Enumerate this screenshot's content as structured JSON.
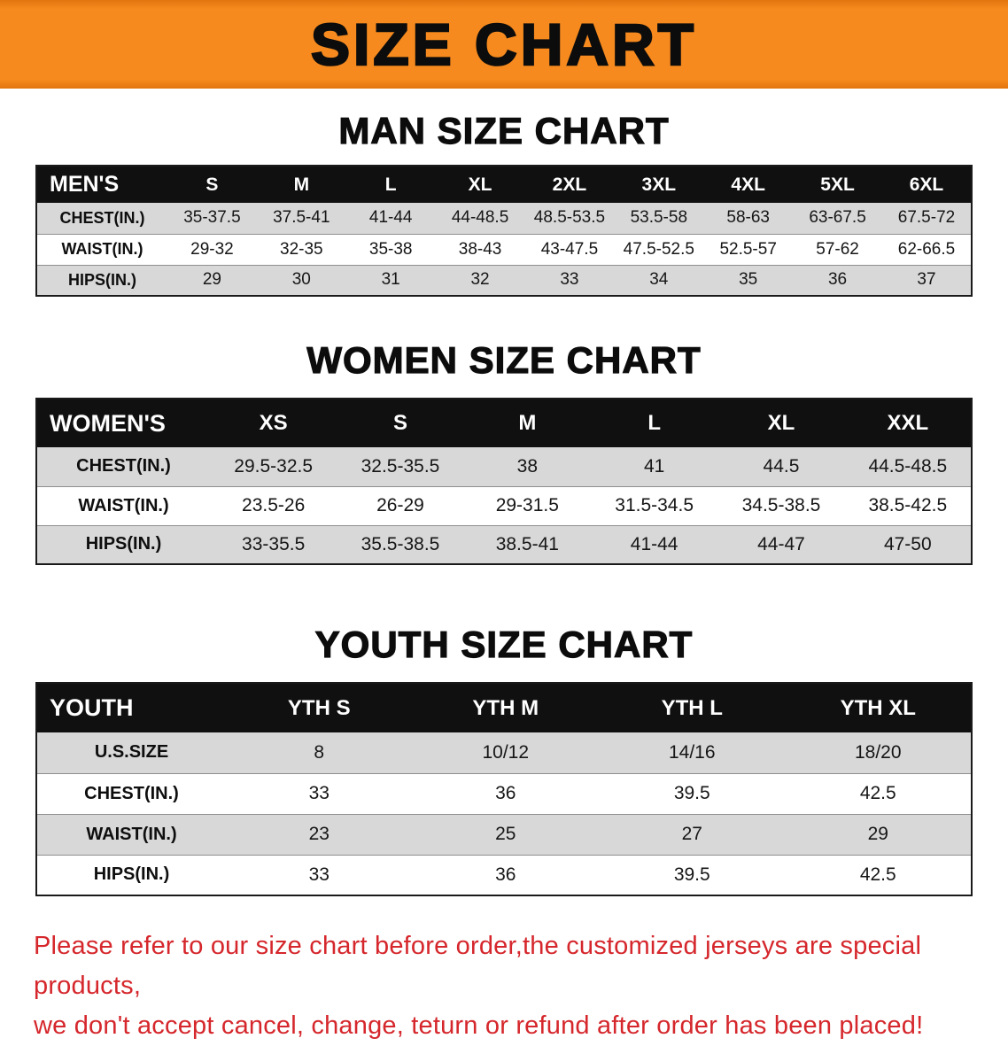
{
  "banner": {
    "title": "SIZE CHART"
  },
  "colors": {
    "banner_bg": "#f68a1e",
    "table_header_bg": "#101010",
    "row_stripe": "#d8d8d8",
    "disclaimer_red": "#d5272c"
  },
  "sections": [
    {
      "id": "men",
      "heading": "MAN SIZE CHART",
      "columns": [
        "MEN'S",
        "S",
        "M",
        "L",
        "XL",
        "2XL",
        "3XL",
        "4XL",
        "5XL",
        "6XL"
      ],
      "rows": [
        {
          "label": "CHEST(IN.)",
          "values": [
            "35-37.5",
            "37.5-41",
            "41-44",
            "44-48.5",
            "48.5-53.5",
            "53.5-58",
            "58-63",
            "63-67.5",
            "67.5-72"
          ]
        },
        {
          "label": "WAIST(IN.)",
          "values": [
            "29-32",
            "32-35",
            "35-38",
            "38-43",
            "43-47.5",
            "47.5-52.5",
            "52.5-57",
            "57-62",
            "62-66.5"
          ]
        },
        {
          "label": "HIPS(IN.)",
          "values": [
            "29",
            "30",
            "31",
            "32",
            "33",
            "34",
            "35",
            "36",
            "37"
          ]
        }
      ]
    },
    {
      "id": "women",
      "heading": "WOMEN SIZE CHART",
      "columns": [
        "WOMEN'S",
        "XS",
        "S",
        "M",
        "L",
        "XL",
        "XXL"
      ],
      "rows": [
        {
          "label": "CHEST(IN.)",
          "values": [
            "29.5-32.5",
            "32.5-35.5",
            "38",
            "41",
            "44.5",
            "44.5-48.5"
          ]
        },
        {
          "label": "WAIST(IN.)",
          "values": [
            "23.5-26",
            "26-29",
            "29-31.5",
            "31.5-34.5",
            "34.5-38.5",
            "38.5-42.5"
          ]
        },
        {
          "label": "HIPS(IN.)",
          "values": [
            "33-35.5",
            "35.5-38.5",
            "38.5-41",
            "41-44",
            "44-47",
            "47-50"
          ]
        }
      ]
    },
    {
      "id": "youth",
      "heading": "YOUTH SIZE CHART",
      "columns": [
        "YOUTH",
        "YTH S",
        "YTH M",
        "YTH L",
        "YTH XL"
      ],
      "rows": [
        {
          "label": "U.S.SIZE",
          "values": [
            "8",
            "10/12",
            "14/16",
            "18/20"
          ]
        },
        {
          "label": "CHEST(IN.)",
          "values": [
            "33",
            "36",
            "39.5",
            "42.5"
          ]
        },
        {
          "label": "WAIST(IN.)",
          "values": [
            "23",
            "25",
            "27",
            "29"
          ]
        },
        {
          "label": "HIPS(IN.)",
          "values": [
            "33",
            "36",
            "39.5",
            "42.5"
          ]
        }
      ]
    }
  ],
  "disclaimer": {
    "line1": "Please refer to our size chart before order,the customized jerseys are special products,",
    "line2": "we don't accept cancel, change, teturn or refund after order has been placed!"
  }
}
